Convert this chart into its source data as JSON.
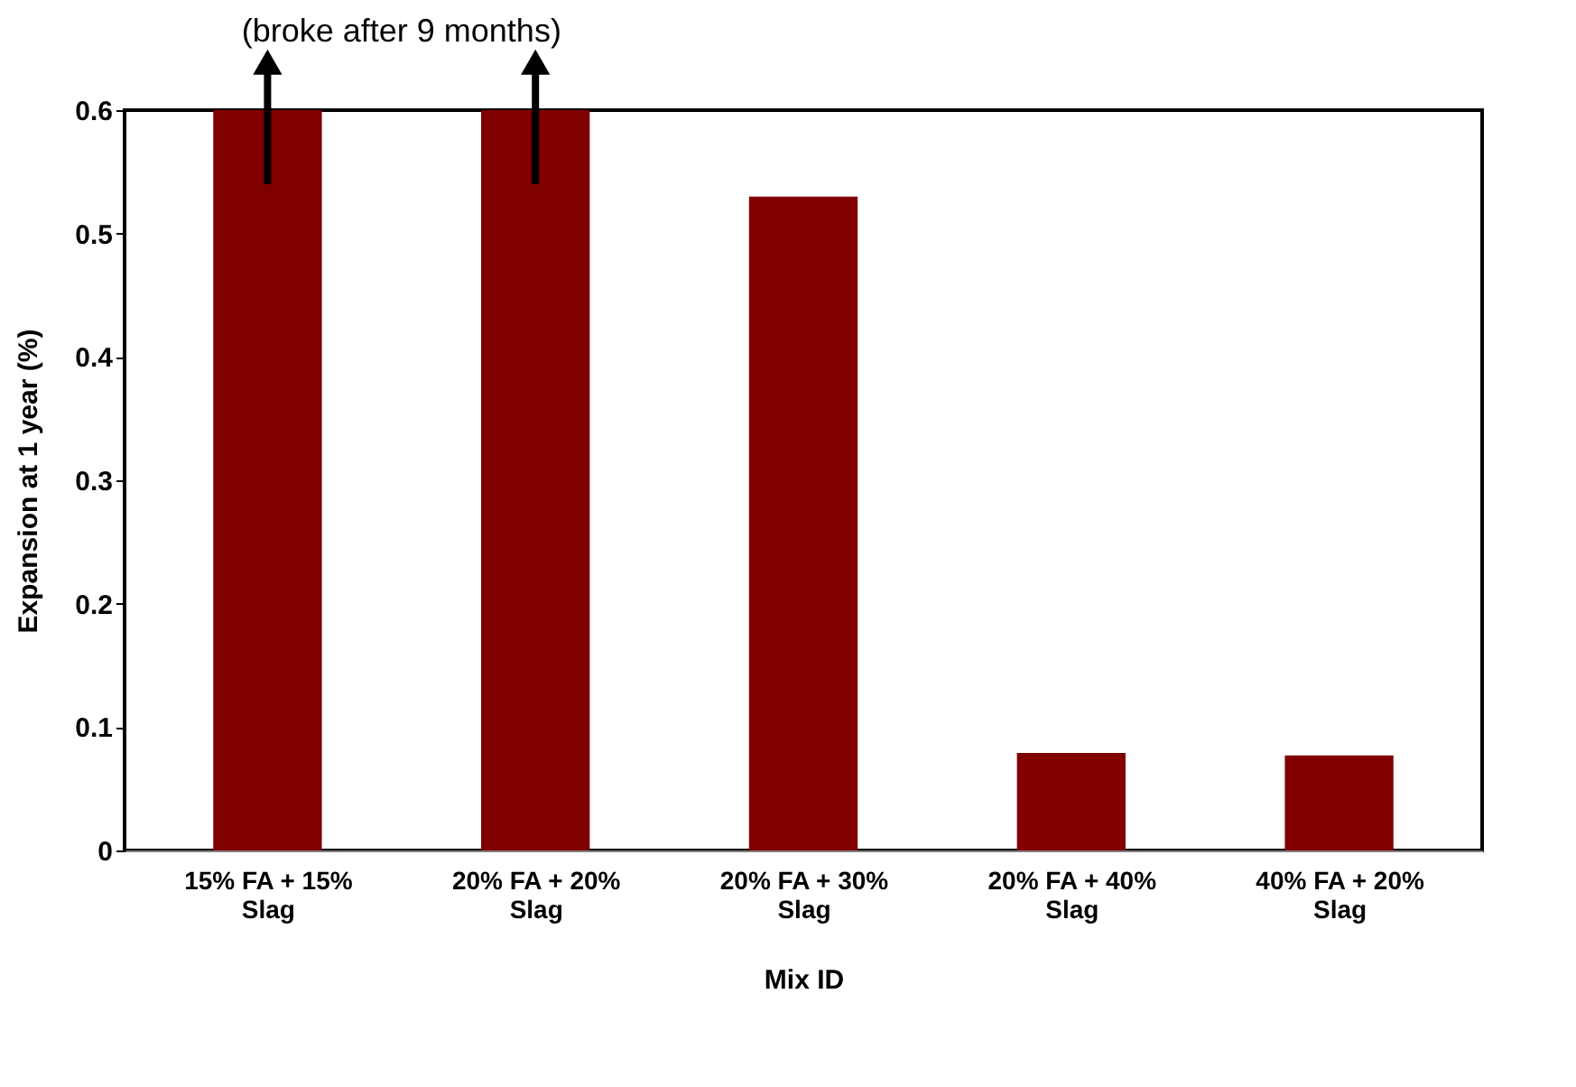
{
  "chart_data": {
    "type": "bar",
    "xlabel": "Mix ID",
    "ylabel": "Expansion at 1 year (%)",
    "categories": [
      "15% FA + 15% Slag",
      "20% FA + 20% Slag",
      "20% FA + 30% Slag",
      "20% FA + 40% Slag",
      "40% FA + 20% Slag"
    ],
    "values": [
      0.6,
      0.6,
      0.53,
      0.079,
      0.077
    ],
    "color": "#800000",
    "ylim": [
      0,
      0.6
    ],
    "yticks": [
      0,
      0.1,
      0.2,
      0.3,
      0.4,
      0.5,
      0.6
    ],
    "grid": false,
    "annotations": [
      "(broke after 9 months)"
    ]
  }
}
